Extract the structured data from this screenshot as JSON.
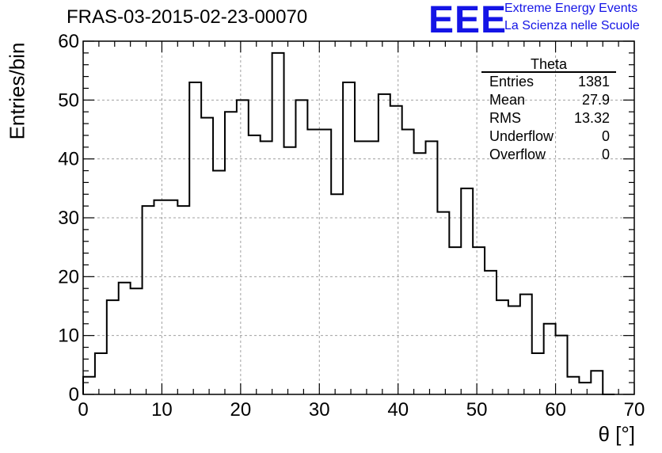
{
  "header": {
    "title": "FRAS-03-2015-02-23-00070",
    "logo_text": "EEE",
    "logo_line1": "Extreme Energy Events",
    "logo_line2": "La Scienza nelle Scuole"
  },
  "stats_box": {
    "title": "Theta",
    "rows": [
      {
        "label": "Entries",
        "value": "1381"
      },
      {
        "label": "Mean",
        "value": "27.9"
      },
      {
        "label": "RMS",
        "value": "13.32"
      },
      {
        "label": "Underflow",
        "value": "0"
      },
      {
        "label": "Overflow",
        "value": "0"
      }
    ]
  },
  "colors": {
    "logo": "#1414e6",
    "line": "#000000",
    "grid": "#a0a0a0"
  },
  "chart_data": {
    "type": "histogram",
    "title": "FRAS-03-2015-02-23-00070",
    "xlabel": "θ [°]",
    "ylabel": "Entries/bin",
    "xlim": [
      0,
      70
    ],
    "ylim": [
      0,
      60
    ],
    "x_ticks": [
      0,
      10,
      20,
      30,
      40,
      50,
      60,
      70
    ],
    "y_ticks": [
      0,
      10,
      20,
      30,
      40,
      50,
      60
    ],
    "grid": true,
    "bin_width": 1.5,
    "bin_edges_start": 0,
    "values": [
      3,
      7,
      16,
      19,
      18,
      32,
      33,
      33,
      32,
      53,
      47,
      38,
      48,
      50,
      44,
      43,
      58,
      42,
      50,
      45,
      45,
      34,
      53,
      43,
      43,
      51,
      49,
      45,
      41,
      43,
      31,
      25,
      35,
      25,
      21,
      16,
      15,
      17,
      7,
      12,
      10,
      3,
      2,
      4,
      0
    ]
  }
}
